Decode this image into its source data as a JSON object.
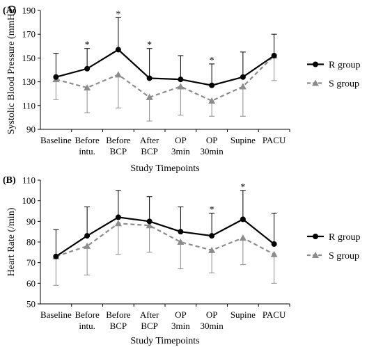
{
  "colors": {
    "r_group": "#000000",
    "s_group": "#8c8c8c",
    "axis": "#000000"
  },
  "chart_data": [
    {
      "type": "line",
      "panel_label": "(A)",
      "xlabel": "Study Timepoints",
      "ylabel": "Systolic Blood Pressure (mmHg)",
      "ylim": [
        90,
        190
      ],
      "yticks": [
        "90",
        "110",
        "130",
        "150",
        "170",
        "190"
      ],
      "categories": [
        [
          "Baseline"
        ],
        [
          "Before",
          "intu."
        ],
        [
          "Before",
          "BCP"
        ],
        [
          "After",
          "BCP"
        ],
        [
          "OP",
          "3min"
        ],
        [
          "OP",
          "30min"
        ],
        [
          "Supine"
        ],
        [
          "PACU"
        ]
      ],
      "grid": false,
      "legend_position": "right",
      "series": [
        {
          "name": "R group",
          "marker": "circle",
          "style": "solid",
          "values": [
            134,
            141,
            157,
            133,
            132,
            127,
            134,
            152
          ],
          "error_upper": [
            154,
            158,
            184,
            158,
            152,
            145,
            155,
            170
          ]
        },
        {
          "name": "S group",
          "marker": "triangle",
          "style": "dashed",
          "values": [
            132,
            125,
            136,
            117,
            126,
            114,
            126,
            152
          ],
          "error_lower": [
            115,
            104,
            108,
            97,
            102,
            101,
            101,
            131
          ]
        }
      ],
      "annotations": [
        {
          "text": "*",
          "category_index": 1,
          "y": 158
        },
        {
          "text": "*",
          "category_index": 2,
          "y": 184
        },
        {
          "text": "*",
          "category_index": 3,
          "y": 158
        },
        {
          "text": "*",
          "category_index": 5,
          "y": 145
        }
      ]
    },
    {
      "type": "line",
      "panel_label": "(B)",
      "xlabel": "Study Timepoints",
      "ylabel": "Heart Rate (/min)",
      "ylim": [
        50,
        110
      ],
      "yticks": [
        "50",
        "60",
        "70",
        "80",
        "90",
        "100",
        "110"
      ],
      "categories": [
        [
          "Baseline"
        ],
        [
          "Before",
          "intu."
        ],
        [
          "Before",
          "BCP"
        ],
        [
          "After",
          "BCP"
        ],
        [
          "OP",
          "3min"
        ],
        [
          "OP",
          "30min"
        ],
        [
          "Supine"
        ],
        [
          "PACU"
        ]
      ],
      "grid": false,
      "legend_position": "right",
      "series": [
        {
          "name": "R group",
          "marker": "circle",
          "style": "solid",
          "values": [
            73,
            83,
            92,
            90,
            85,
            83,
            91,
            79
          ],
          "error_upper": [
            86,
            97,
            105,
            102,
            97,
            94,
            105,
            94
          ]
        },
        {
          "name": "S group",
          "marker": "triangle",
          "style": "dashed",
          "values": [
            73,
            78,
            89,
            88,
            80,
            76,
            82,
            74
          ],
          "error_lower": [
            59,
            64,
            74,
            75,
            67,
            65,
            69,
            60
          ]
        }
      ],
      "annotations": [
        {
          "text": "*",
          "category_index": 5,
          "y": 94
        },
        {
          "text": "*",
          "category_index": 6,
          "y": 105
        }
      ]
    }
  ]
}
